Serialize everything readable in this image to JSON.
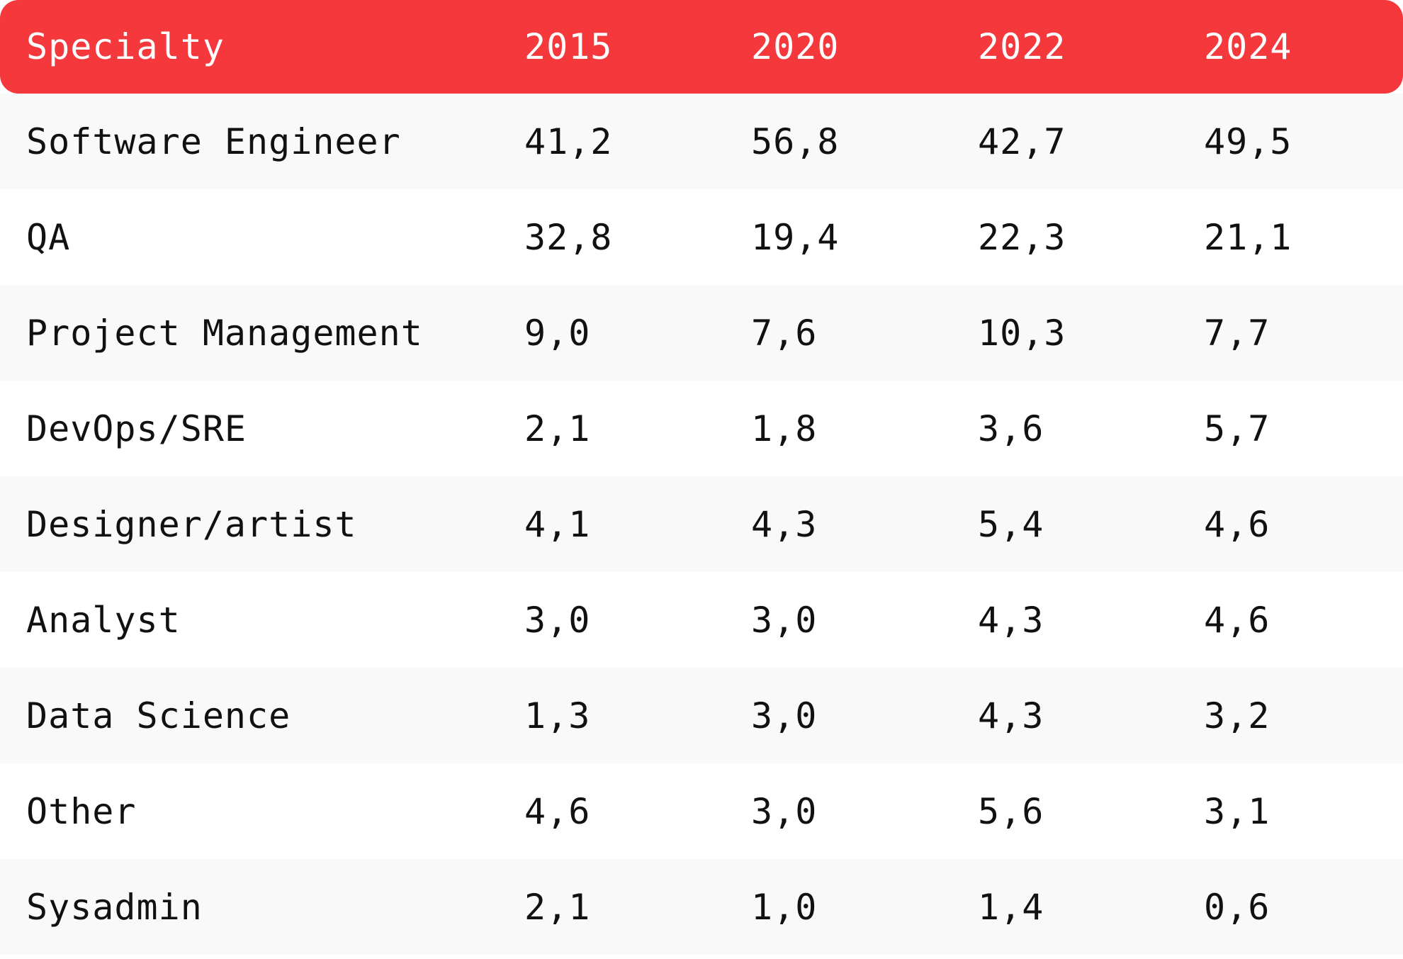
{
  "colors": {
    "header_background": "#F5383C",
    "header_text": "#FFFFFF",
    "row_odd": "#F9F9F9",
    "row_even": "#FFFFFF",
    "cell_text": "#111111"
  },
  "chart_data": {
    "type": "table",
    "columns": [
      "Specialty",
      "2015",
      "2020",
      "2022",
      "2024"
    ],
    "rows": [
      {
        "label": "Software Engineer",
        "values": [
          "41,2",
          "56,8",
          "42,7",
          "49,5"
        ]
      },
      {
        "label": "QA",
        "values": [
          "32,8",
          "19,4",
          "22,3",
          "21,1"
        ]
      },
      {
        "label": "Project Management",
        "values": [
          "9,0",
          "7,6",
          "10,3",
          "7,7"
        ]
      },
      {
        "label": "DevOps/SRE",
        "values": [
          "2,1",
          "1,8",
          "3,6",
          "5,7"
        ]
      },
      {
        "label": "Designer/artist",
        "values": [
          "4,1",
          "4,3",
          "5,4",
          "4,6"
        ]
      },
      {
        "label": "Analyst",
        "values": [
          "3,0",
          "3,0",
          "4,3",
          "4,6"
        ]
      },
      {
        "label": "Data Science",
        "values": [
          "1,3",
          "3,0",
          "4,3",
          "3,2"
        ]
      },
      {
        "label": "Other",
        "values": [
          "4,6",
          "3,0",
          "5,6",
          "3,1"
        ]
      },
      {
        "label": "Sysadmin",
        "values": [
          "2,1",
          "1,0",
          "1,4",
          "0,6"
        ]
      }
    ]
  }
}
